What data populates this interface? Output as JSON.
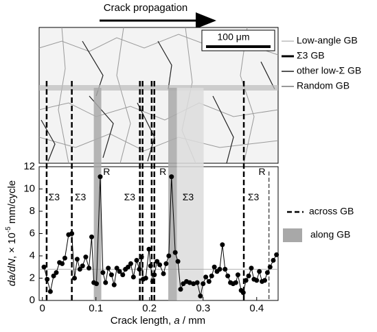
{
  "chart_data": {
    "type": "line",
    "title": "Crack propagation",
    "scale_bar": "100 μm",
    "micro_legend": [
      "Low-angle GB",
      "Σ3 GB",
      "other low-Σ GB",
      "Random GB"
    ],
    "x_label": [
      "Crack length, ",
      "a",
      " / mm"
    ],
    "y_label": [
      "da/dN",
      ", × 10",
      "-5",
      " mm/cycle"
    ],
    "xlim": [
      -0.006,
      0.44
    ],
    "ylim": [
      0,
      12
    ],
    "xticks": [
      0,
      0.1,
      0.2,
      0.3,
      0.4
    ],
    "yticks": [
      0,
      2,
      4,
      6,
      8,
      10,
      12
    ],
    "color": "#000000",
    "reference_line": 2.8,
    "x": [
      0.003,
      0.009,
      0.015,
      0.021,
      0.026,
      0.032,
      0.037,
      0.042,
      0.049,
      0.055,
      0.06,
      0.065,
      0.07,
      0.075,
      0.081,
      0.087,
      0.092,
      0.096,
      0.101,
      0.108,
      0.113,
      0.118,
      0.123,
      0.129,
      0.134,
      0.139,
      0.144,
      0.15,
      0.155,
      0.16,
      0.165,
      0.17,
      0.176,
      0.181,
      0.185,
      0.188,
      0.193,
      0.199,
      0.202,
      0.206,
      0.209,
      0.214,
      0.219,
      0.226,
      0.231,
      0.236,
      0.241,
      0.248,
      0.253,
      0.258,
      0.263,
      0.269,
      0.275,
      0.282,
      0.289,
      0.295,
      0.3,
      0.305,
      0.311,
      0.316,
      0.321,
      0.326,
      0.331,
      0.336,
      0.341,
      0.346,
      0.351,
      0.356,
      0.361,
      0.365,
      0.371,
      0.375,
      0.38,
      0.385,
      0.39,
      0.395,
      0.4,
      0.405,
      0.41,
      0.415,
      0.42,
      0.425,
      0.431,
      0.437
    ],
    "values": [
      3.0,
      1.9,
      0.8,
      2.2,
      2.5,
      3.4,
      3.3,
      3.8,
      5.9,
      6.0,
      2.0,
      3.7,
      2.8,
      3.1,
      3.9,
      2.9,
      5.7,
      1.6,
      1.5,
      11.1,
      2.5,
      1.6,
      2.9,
      2.3,
      1.4,
      2.9,
      2.6,
      2.3,
      2.8,
      3.0,
      3.3,
      2.1,
      3.6,
      2.8,
      3.9,
      1.9,
      2.0,
      4.6,
      3.1,
      1.7,
      2.3,
      3.5,
      3.2,
      2.4,
      3.3,
      4.0,
      11.1,
      4.3,
      3.5,
      1.0,
      1.5,
      1.7,
      1.6,
      1.5,
      1.6,
      0.4,
      1.5,
      2.1,
      1.7,
      2.2,
      3.0,
      2.6,
      2.8,
      5.0,
      2.8,
      2.2,
      1.6,
      1.5,
      1.6,
      2.3,
      0.9,
      0.7,
      1.8,
      2.2,
      2.9,
      1.9,
      1.8,
      2.6,
      1.7,
      1.8,
      2.5,
      3.0,
      3.6,
      4.1
    ],
    "across_gb": {
      "label": "across GB",
      "x": [
        0.008,
        0.055,
        0.182,
        0.187,
        0.204,
        0.209,
        0.376
      ],
      "thin_x": [
        0.423
      ]
    },
    "along_gb": {
      "label": "along GB",
      "color": "#a8a8a8",
      "bands": [
        {
          "x": [
            0.096,
            0.11
          ],
          "color": "#a8a8a8"
        },
        {
          "x": [
            0.235,
            0.251
          ],
          "color": "#a8a8a8"
        },
        {
          "x": [
            0.251,
            0.301
          ],
          "color": "#dcdcdc"
        }
      ]
    },
    "annotations": [
      {
        "text": "Σ3",
        "x": 0.022,
        "y": 9.2
      },
      {
        "text": "Σ3",
        "x": 0.071,
        "y": 9.2
      },
      {
        "text": "Σ3",
        "x": 0.163,
        "y": 9.2
      },
      {
        "text": "Σ3",
        "x": 0.272,
        "y": 9.2
      },
      {
        "text": "Σ3",
        "x": 0.394,
        "y": 9.2
      },
      {
        "text": "R",
        "x": 0.12,
        "y": 11.5
      },
      {
        "text": "R",
        "x": 0.225,
        "y": 11.5
      },
      {
        "text": "R",
        "x": 0.41,
        "y": 11.5
      }
    ]
  }
}
